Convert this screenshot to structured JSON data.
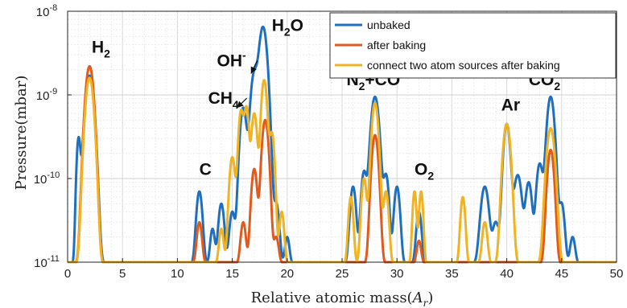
{
  "chart_data": {
    "type": "line",
    "title": "",
    "xlabel_prefix": "Relative atomic mass(",
    "xlabel_var": "A",
    "xlabel_sub": "r",
    "xlabel_suffix": ")",
    "ylabel": "Pressure(mbar)",
    "xlim": [
      0,
      50
    ],
    "ylim": [
      1e-11,
      1e-08
    ],
    "yscale": "log",
    "grid": true,
    "legend_position": "top-right",
    "x_ticks": [
      "0",
      "5",
      "10",
      "15",
      "20",
      "25",
      "30",
      "35",
      "40",
      "45",
      "50"
    ],
    "y_ticks": [
      {
        "value": 1e-11,
        "base": "10",
        "exp": "-11"
      },
      {
        "value": 1e-10,
        "base": "10",
        "exp": "-10"
      },
      {
        "value": 1e-09,
        "base": "10",
        "exp": "-9"
      },
      {
        "value": 1e-08,
        "base": "10",
        "exp": "-8"
      }
    ],
    "series": [
      {
        "name": "unbaked",
        "color": "#1f6fbf",
        "peaks": [
          [
            1,
            3e-10,
            0.15
          ],
          [
            2,
            1.7e-09,
            0.32
          ],
          [
            12,
            7e-11,
            0.22
          ],
          [
            13.2,
            2.5e-11,
            0.18
          ],
          [
            14,
            5e-11,
            0.22
          ],
          [
            15,
            4e-11,
            0.22
          ],
          [
            16,
            7e-10,
            0.25
          ],
          [
            17,
            1.8e-09,
            0.28
          ],
          [
            17.8,
            6.5e-09,
            0.3
          ],
          [
            19,
            5e-11,
            0.22
          ],
          [
            20,
            2e-11,
            0.18
          ],
          [
            26,
            8e-11,
            0.22
          ],
          [
            27,
            1.2e-10,
            0.22
          ],
          [
            28,
            9.5e-10,
            0.3
          ],
          [
            29,
            1.1e-10,
            0.22
          ],
          [
            30,
            8e-11,
            0.22
          ],
          [
            32,
            4e-11,
            0.2
          ],
          [
            38,
            8e-11,
            0.3
          ],
          [
            39,
            3e-11,
            0.25
          ],
          [
            40,
            4.5e-10,
            0.25
          ],
          [
            41,
            1.1e-10,
            0.3
          ],
          [
            42,
            9e-11,
            0.25
          ],
          [
            43,
            1.5e-10,
            0.25
          ],
          [
            44,
            9.5e-10,
            0.28
          ],
          [
            45,
            5e-11,
            0.22
          ],
          [
            46,
            2e-11,
            0.2
          ]
        ]
      },
      {
        "name": "after baking",
        "color": "#e05a1e",
        "peaks": [
          [
            2,
            2.2e-09,
            0.3
          ],
          [
            12,
            3e-11,
            0.2
          ],
          [
            16,
            3e-11,
            0.2
          ],
          [
            17,
            1.3e-10,
            0.22
          ],
          [
            18,
            5e-10,
            0.25
          ],
          [
            19,
            2e-11,
            0.2
          ],
          [
            28,
            3.3e-10,
            0.25
          ],
          [
            32,
            1.8e-11,
            0.18
          ],
          [
            44,
            2.2e-10,
            0.25
          ]
        ]
      },
      {
        "name": "connect two atom sources after baking",
        "color": "#f0b323",
        "peaks": [
          [
            2,
            1.6e-09,
            0.3
          ],
          [
            14,
            2.5e-11,
            0.18
          ],
          [
            15,
            1.8e-10,
            0.22
          ],
          [
            15.8,
            6.5e-10,
            0.2
          ],
          [
            16.3,
            7e-10,
            0.18
          ],
          [
            17,
            6e-10,
            0.22
          ],
          [
            17.9,
            1.5e-09,
            0.22
          ],
          [
            18.6,
            3.5e-10,
            0.2
          ],
          [
            19.5,
            4e-11,
            0.18
          ],
          [
            25.8,
            6e-11,
            0.18
          ],
          [
            27,
            1e-10,
            0.2
          ],
          [
            28,
            8e-10,
            0.25
          ],
          [
            29,
            7e-11,
            0.2
          ],
          [
            31.6,
            7e-11,
            0.15
          ],
          [
            32.2,
            7e-11,
            0.15
          ],
          [
            36,
            6e-11,
            0.18
          ],
          [
            38,
            3e-11,
            0.2
          ],
          [
            40,
            4.5e-10,
            0.28
          ],
          [
            44,
            4e-10,
            0.3
          ]
        ]
      }
    ],
    "annotations": [
      {
        "label": "H",
        "sub": "2",
        "x": 2.2,
        "y": 3.2e-09
      },
      {
        "label": "C",
        "x": 12.0,
        "y": 1.1e-10
      },
      {
        "label": "CH",
        "sub": "4",
        "x": 12.8,
        "y": 7.8e-10,
        "arrow_to": [
          15.7,
          7e-10
        ]
      },
      {
        "label": "OH",
        "sup": "-",
        "x": 13.6,
        "y": 2.2e-09,
        "arrow_to": [
          17.0,
          1.8e-09
        ]
      },
      {
        "label": "H",
        "sub": "2",
        "tail": "O",
        "x": 18.6,
        "y": 5.8e-09
      },
      {
        "label": "N",
        "sub": "2",
        "tail": "+CO",
        "x": 25.4,
        "y": 1.3e-09
      },
      {
        "label": "O",
        "sub": "2",
        "x": 31.6,
        "y": 1.1e-10
      },
      {
        "label": "Ar",
        "x": 39.5,
        "y": 6.5e-10
      },
      {
        "label": "CO",
        "sub": "2",
        "x": 42.0,
        "y": 1.3e-09
      }
    ]
  }
}
